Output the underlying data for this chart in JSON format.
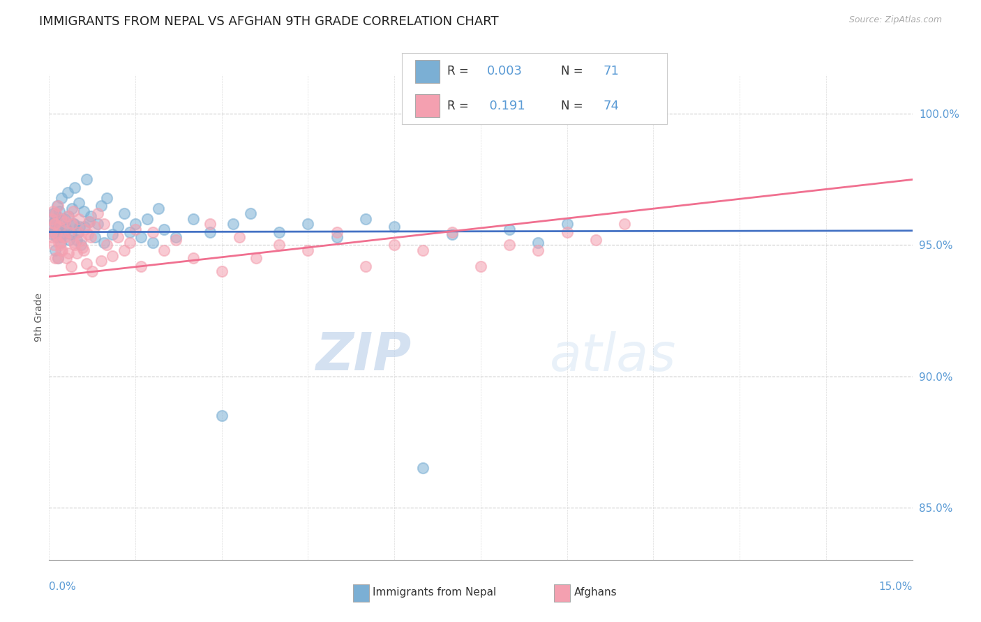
{
  "title": "IMMIGRANTS FROM NEPAL VS AFGHAN 9TH GRADE CORRELATION CHART",
  "source_text": "Source: ZipAtlas.com",
  "ylabel": "9th Grade",
  "xlim": [
    0.0,
    15.0
  ],
  "ylim": [
    83.0,
    101.5
  ],
  "yticks": [
    85.0,
    90.0,
    95.0,
    100.0
  ],
  "ytick_labels": [
    "85.0%",
    "90.0%",
    "95.0%",
    "100.0%"
  ],
  "series1_color": "#7bafd4",
  "series2_color": "#f4a0b0",
  "trendline1_color": "#4472c4",
  "trendline2_color": "#f07090",
  "background_color": "#ffffff",
  "title_fontsize": 13,
  "axis_label_fontsize": 10,
  "tick_fontsize": 11,
  "nepal_trendline_y0": 95.5,
  "nepal_trendline_y1": 95.55,
  "afghan_trendline_y0": 93.8,
  "afghan_trendline_y1": 97.5,
  "nepal_x": [
    0.05,
    0.07,
    0.08,
    0.1,
    0.12,
    0.13,
    0.14,
    0.15,
    0.17,
    0.18,
    0.2,
    0.22,
    0.25,
    0.27,
    0.3,
    0.32,
    0.35,
    0.4,
    0.42,
    0.45,
    0.5,
    0.52,
    0.55,
    0.6,
    0.62,
    0.65,
    0.7,
    0.72,
    0.8,
    0.85,
    0.9,
    0.95,
    1.0,
    1.1,
    1.2,
    1.3,
    1.4,
    1.5,
    1.6,
    1.7,
    1.8,
    1.9,
    2.0,
    2.2,
    2.5,
    2.8,
    3.0,
    3.2,
    3.5,
    4.0,
    4.5,
    5.0,
    5.5,
    6.0,
    6.5,
    7.0,
    8.0,
    8.5,
    9.0,
    0.06,
    0.09,
    0.11,
    0.16,
    0.19,
    0.23,
    0.28,
    0.33,
    0.38,
    0.43,
    0.48,
    0.53
  ],
  "nepal_y": [
    95.8,
    96.2,
    95.5,
    94.8,
    96.0,
    95.3,
    96.5,
    94.5,
    95.7,
    96.3,
    95.1,
    96.8,
    95.4,
    96.0,
    95.6,
    97.0,
    95.2,
    96.4,
    95.8,
    97.2,
    95.5,
    96.6,
    95.0,
    96.3,
    95.7,
    97.5,
    95.9,
    96.1,
    95.3,
    95.8,
    96.5,
    95.1,
    96.8,
    95.4,
    95.7,
    96.2,
    95.5,
    95.8,
    95.3,
    96.0,
    95.1,
    96.4,
    95.6,
    95.3,
    96.0,
    95.5,
    88.5,
    95.8,
    96.2,
    95.5,
    95.8,
    95.3,
    96.0,
    95.7,
    86.5,
    95.4,
    95.6,
    95.1,
    95.8,
    95.4,
    95.9,
    96.2,
    95.6,
    95.3,
    96.0,
    95.7,
    96.1,
    95.4,
    95.8,
    95.2,
    95.7
  ],
  "afghan_x": [
    0.04,
    0.06,
    0.07,
    0.08,
    0.09,
    0.1,
    0.12,
    0.13,
    0.15,
    0.17,
    0.18,
    0.2,
    0.22,
    0.25,
    0.27,
    0.3,
    0.32,
    0.35,
    0.38,
    0.4,
    0.42,
    0.45,
    0.48,
    0.5,
    0.52,
    0.55,
    0.6,
    0.62,
    0.65,
    0.7,
    0.72,
    0.75,
    0.8,
    0.85,
    0.9,
    0.95,
    1.0,
    1.1,
    1.2,
    1.3,
    1.4,
    1.5,
    1.6,
    1.8,
    2.0,
    2.2,
    2.5,
    2.8,
    3.0,
    3.3,
    3.6,
    4.0,
    4.5,
    5.0,
    5.5,
    6.0,
    6.5,
    7.0,
    7.5,
    8.0,
    8.5,
    9.0,
    9.5,
    10.0,
    0.05,
    0.11,
    0.16,
    0.19,
    0.23,
    0.28,
    0.33,
    0.43,
    0.58,
    0.68
  ],
  "afghan_y": [
    96.0,
    95.5,
    96.3,
    95.0,
    95.8,
    94.5,
    96.2,
    95.4,
    96.5,
    95.1,
    95.7,
    94.8,
    96.0,
    95.3,
    95.9,
    94.5,
    96.1,
    95.5,
    94.2,
    95.8,
    96.3,
    95.0,
    94.7,
    95.5,
    96.0,
    95.2,
    94.8,
    95.6,
    94.3,
    95.9,
    95.3,
    94.0,
    95.7,
    96.2,
    94.4,
    95.8,
    95.0,
    94.6,
    95.3,
    94.8,
    95.1,
    95.6,
    94.2,
    95.5,
    94.8,
    95.2,
    94.5,
    95.8,
    94.0,
    95.3,
    94.5,
    95.0,
    94.8,
    95.5,
    94.2,
    95.0,
    94.8,
    95.5,
    94.2,
    95.0,
    94.8,
    95.5,
    95.2,
    95.8,
    95.3,
    95.8,
    94.5,
    95.0,
    94.8,
    95.3,
    94.7,
    95.1,
    94.9,
    95.4
  ]
}
